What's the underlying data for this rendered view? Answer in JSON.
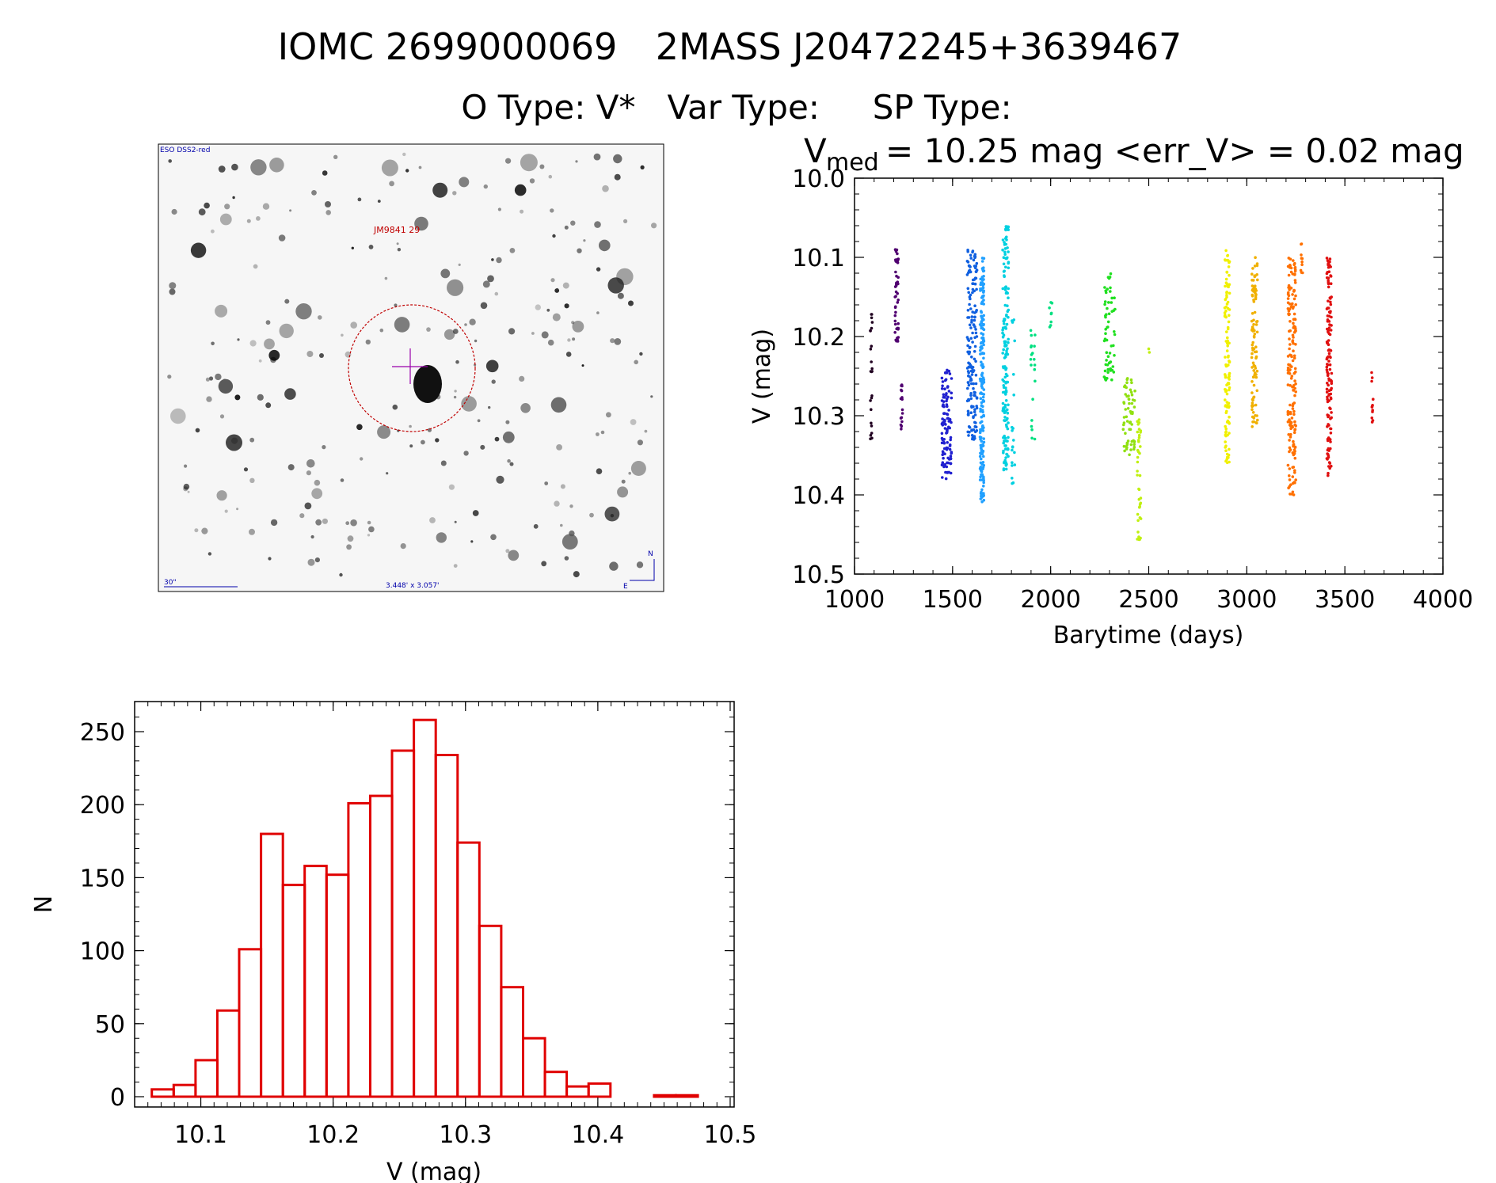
{
  "header": {
    "object_id": "IOMC 2699000069",
    "name": "2MASS J20472245+3639467",
    "line2": "O Type: V*   Var Type:     SP Type:"
  },
  "finder": {
    "survey_label": "ESO DSS2-red",
    "target_label": "JM9841 29",
    "scale_label": "30\"",
    "fov_label": "3.448' x 3.057'",
    "north_label": "N",
    "east_label": "E",
    "colors": {
      "circle": "#c00000",
      "crosshair": "#9900aa",
      "text_red": "#c00000",
      "text_blue": "#0000aa"
    }
  },
  "chart_data": [
    {
      "type": "scatter",
      "title_main": "V",
      "title_sub": "med",
      "title_rest": "= 10.25 mag <err_V> = 0.02 mag",
      "xlabel": "Barytime (days)",
      "ylabel": "V (mag)",
      "xlim": [
        1000,
        4000
      ],
      "ylim": [
        10.5,
        10.0
      ],
      "y_inverted": true,
      "xticks": [
        1000,
        1500,
        2000,
        2500,
        3000,
        3500,
        4000
      ],
      "yticks": [
        10.0,
        10.1,
        10.2,
        10.3,
        10.4,
        10.5
      ],
      "yticks_labels": [
        "10.0",
        "10.1",
        "10.2",
        "10.3",
        "10.4",
        "10.5"
      ],
      "clusters": [
        {
          "x": 1085,
          "width": 12,
          "ymin": 10.17,
          "ymax": 10.33,
          "n": 24,
          "color": "#200020"
        },
        {
          "x": 1215,
          "width": 18,
          "ymin": 10.09,
          "ymax": 10.21,
          "n": 45,
          "color": "#500070"
        },
        {
          "x": 1240,
          "width": 10,
          "ymin": 10.26,
          "ymax": 10.32,
          "n": 16,
          "color": "#500070"
        },
        {
          "x": 1470,
          "width": 50,
          "ymin": 10.24,
          "ymax": 10.38,
          "n": 110,
          "color": "#2020d0"
        },
        {
          "x": 1600,
          "width": 50,
          "ymin": 10.09,
          "ymax": 10.33,
          "n": 170,
          "color": "#1060e0"
        },
        {
          "x": 1650,
          "width": 20,
          "ymin": 10.1,
          "ymax": 10.41,
          "n": 200,
          "color": "#20a0ff"
        },
        {
          "x": 1770,
          "width": 30,
          "ymin": 10.06,
          "ymax": 10.37,
          "n": 160,
          "color": "#00d0e0"
        },
        {
          "x": 1810,
          "width": 15,
          "ymin": 10.15,
          "ymax": 10.4,
          "n": 20,
          "color": "#00d0e0"
        },
        {
          "x": 1910,
          "width": 25,
          "ymin": 10.19,
          "ymax": 10.33,
          "n": 20,
          "color": "#00e080"
        },
        {
          "x": 2000,
          "width": 15,
          "ymin": 10.15,
          "ymax": 10.19,
          "n": 8,
          "color": "#00e080"
        },
        {
          "x": 2300,
          "width": 60,
          "ymin": 10.12,
          "ymax": 10.26,
          "n": 60,
          "color": "#20e020"
        },
        {
          "x": 2400,
          "width": 60,
          "ymin": 10.25,
          "ymax": 10.35,
          "n": 60,
          "color": "#90e010"
        },
        {
          "x": 2450,
          "width": 20,
          "ymin": 10.3,
          "ymax": 10.46,
          "n": 40,
          "color": "#c0f010"
        },
        {
          "x": 2500,
          "width": 10,
          "ymin": 10.21,
          "ymax": 10.22,
          "n": 2,
          "color": "#c0f010"
        },
        {
          "x": 2900,
          "width": 25,
          "ymin": 10.09,
          "ymax": 10.36,
          "n": 120,
          "color": "#f0f000"
        },
        {
          "x": 3040,
          "width": 30,
          "ymin": 10.1,
          "ymax": 10.32,
          "n": 100,
          "color": "#f0b000"
        },
        {
          "x": 3230,
          "width": 40,
          "ymin": 10.1,
          "ymax": 10.4,
          "n": 180,
          "color": "#ff7000"
        },
        {
          "x": 3280,
          "width": 10,
          "ymin": 10.08,
          "ymax": 10.12,
          "n": 10,
          "color": "#ff7000"
        },
        {
          "x": 3420,
          "width": 25,
          "ymin": 10.1,
          "ymax": 10.38,
          "n": 140,
          "color": "#e01010"
        },
        {
          "x": 3640,
          "width": 8,
          "ymin": 10.24,
          "ymax": 10.32,
          "n": 12,
          "color": "#e01010"
        }
      ]
    },
    {
      "type": "bar",
      "subtype": "histogram",
      "xlabel": "V (mag)",
      "ylabel": "N",
      "xlim": [
        10.05,
        10.5
      ],
      "ylim": [
        0,
        270
      ],
      "xticks": [
        10.1,
        10.2,
        10.3,
        10.4,
        10.5
      ],
      "yticks": [
        0,
        50,
        100,
        150,
        200,
        250
      ],
      "bin_width": 0.0165,
      "bin_start": 10.063,
      "values": [
        5,
        8,
        25,
        59,
        101,
        180,
        145,
        158,
        152,
        201,
        206,
        237,
        258,
        234,
        174,
        117,
        75,
        40,
        17,
        7,
        9,
        0,
        0,
        1,
        1
      ],
      "color": "#e00000"
    }
  ]
}
